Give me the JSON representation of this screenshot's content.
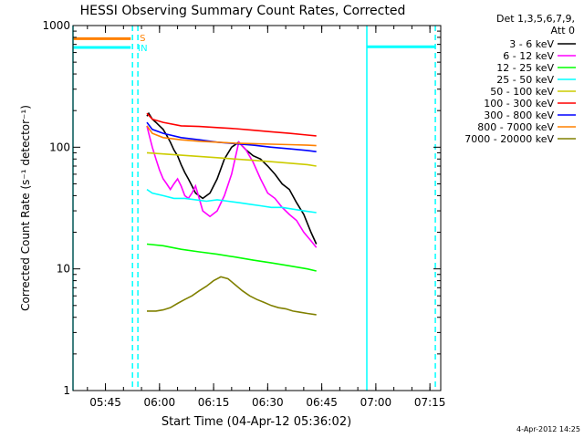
{
  "chart_data": {
    "type": "line",
    "title": "HESSI Observing Summary Count Rates, Corrected",
    "xlabel": "Start Time (04-Apr-12 05:36:02)",
    "ylabel": "Corrected Count Rate (s⁻¹ detector⁻¹)",
    "y_scale": "log",
    "ylim": [
      1,
      1000
    ],
    "xlim_min": [
      0,
      102
    ],
    "x_ticks": [
      {
        "min": 9,
        "label": "05:45"
      },
      {
        "min": 24,
        "label": "06:00"
      },
      {
        "min": 39,
        "label": "06:15"
      },
      {
        "min": 54,
        "label": "06:30"
      },
      {
        "min": 69,
        "label": "06:45"
      },
      {
        "min": 84,
        "label": "07:00"
      },
      {
        "min": 99,
        "label": "07:15"
      }
    ],
    "y_ticks": [
      {
        "value": 1,
        "label": "1"
      },
      {
        "value": 10,
        "label": "10"
      },
      {
        "value": 100,
        "label": "100"
      },
      {
        "value": 1000,
        "label": "1000"
      }
    ],
    "legend_header": [
      "Det 1,3,5,6,7,9,",
      "Att 0"
    ],
    "legend_position": "right",
    "date_stamp": "4-Apr-2012 14:25",
    "series": [
      {
        "name": "3 - 6 keV",
        "color": "#000000",
        "x": [
          20.5,
          21,
          22,
          23,
          24,
          25,
          26,
          27,
          28,
          29,
          30,
          31,
          32,
          33,
          34,
          36,
          38,
          40,
          42,
          44,
          46,
          48,
          50,
          52,
          54,
          56,
          58,
          60,
          62,
          64,
          66,
          67.5
        ],
        "values": [
          180,
          190,
          170,
          160,
          150,
          140,
          125,
          110,
          95,
          85,
          72,
          62,
          55,
          48,
          42,
          38,
          42,
          55,
          80,
          100,
          110,
          95,
          85,
          80,
          70,
          60,
          50,
          45,
          35,
          28,
          20,
          16
        ]
      },
      {
        "name": "6 - 12 keV",
        "color": "#ff00ff",
        "x": [
          20.5,
          21,
          22,
          23,
          24,
          25,
          26,
          27,
          28,
          29,
          30,
          31,
          32,
          33,
          34,
          35,
          36,
          38,
          40,
          42,
          44,
          46,
          48,
          50,
          52,
          54,
          56,
          58,
          60,
          62,
          64,
          66,
          67.5
        ],
        "values": [
          150,
          130,
          100,
          80,
          65,
          55,
          50,
          45,
          50,
          55,
          48,
          40,
          38,
          42,
          48,
          38,
          30,
          27,
          30,
          40,
          60,
          110,
          95,
          75,
          55,
          42,
          38,
          32,
          28,
          25,
          20,
          17,
          15
        ]
      },
      {
        "name": "12 - 25 keV",
        "color": "#00ff00",
        "x": [
          20.5,
          25,
          30,
          35,
          40,
          45,
          50,
          55,
          60,
          65,
          67.5
        ],
        "values": [
          16,
          15.5,
          14.5,
          13.8,
          13.2,
          12.5,
          11.8,
          11.2,
          10.6,
          10.0,
          9.6
        ]
      },
      {
        "name": "25 - 50 keV",
        "color": "#00ffff",
        "x": [
          20.5,
          22,
          25,
          28,
          31,
          34,
          37,
          40,
          43,
          46,
          49,
          52,
          55,
          58,
          61,
          64,
          67.5
        ],
        "values": [
          45,
          42,
          40,
          38,
          38,
          37,
          36,
          37,
          36,
          35,
          34,
          33,
          32,
          32,
          31,
          30,
          29
        ]
      },
      {
        "name": "50 - 100 keV",
        "color": "#cccc00",
        "x": [
          20.5,
          25,
          30,
          35,
          40,
          45,
          50,
          55,
          60,
          65,
          67.5
        ],
        "values": [
          90,
          88,
          86,
          84,
          82,
          80,
          78,
          76,
          74,
          72,
          70
        ]
      },
      {
        "name": "100 - 300 keV",
        "color": "#ff0000",
        "x": [
          20.5,
          22,
          25,
          30,
          35,
          40,
          45,
          50,
          55,
          60,
          65,
          67.5
        ],
        "values": [
          190,
          170,
          160,
          150,
          148,
          145,
          142,
          138,
          134,
          130,
          126,
          124
        ]
      },
      {
        "name": "300 - 800 keV",
        "color": "#0000ff",
        "x": [
          20.5,
          22,
          25,
          30,
          35,
          40,
          45,
          50,
          55,
          60,
          65,
          67.5
        ],
        "values": [
          160,
          140,
          130,
          120,
          115,
          110,
          107,
          104,
          100,
          97,
          94,
          92
        ]
      },
      {
        "name": "800 - 7000 keV",
        "color": "#ff8000",
        "x": [
          20.5,
          22,
          25,
          30,
          35,
          40,
          45,
          50,
          55,
          60,
          65,
          67.5
        ],
        "values": [
          150,
          130,
          120,
          115,
          112,
          110,
          108,
          107,
          106,
          105,
          104,
          103
        ]
      },
      {
        "name": "7000 - 20000 keV",
        "color": "#808000",
        "x": [
          20.5,
          21,
          23,
          25,
          27,
          29,
          31,
          33,
          35,
          37,
          39,
          41,
          43,
          45,
          47,
          49,
          51,
          53,
          55,
          57,
          59,
          61,
          63,
          65,
          67.5
        ],
        "values": [
          4.5,
          4.5,
          4.5,
          4.6,
          4.8,
          5.2,
          5.6,
          6.0,
          6.6,
          7.2,
          8.0,
          8.6,
          8.3,
          7.4,
          6.6,
          6.0,
          5.6,
          5.3,
          5.0,
          4.8,
          4.7,
          4.5,
          4.4,
          4.3,
          4.2
        ]
      }
    ],
    "markers": [
      {
        "type": "bar",
        "x_start": 0,
        "x_end": 16,
        "value": 780,
        "color": "#ff8000"
      },
      {
        "type": "bar",
        "x_start": 0,
        "x_end": 16,
        "value": 660,
        "color": "#00ffff"
      },
      {
        "type": "bar",
        "x_start": 81.5,
        "x_end": 100.5,
        "value": 670,
        "color": "#00ffff"
      },
      {
        "type": "vline",
        "min": 0,
        "color": "#00ffff",
        "style": "solid"
      },
      {
        "type": "vline",
        "min": 16.5,
        "color": "#00ffff",
        "style": "dashed"
      },
      {
        "type": "vline",
        "min": 18,
        "color": "#00ffff",
        "style": "dashed"
      },
      {
        "type": "vline",
        "min": 81.5,
        "color": "#00ffff",
        "style": "solid"
      },
      {
        "type": "vline",
        "min": 100.5,
        "color": "#00ffff",
        "style": "dashed"
      }
    ],
    "flags": [
      {
        "text": "S",
        "min": 18,
        "value": 800,
        "color": "#ff8000"
      },
      {
        "text": "IN",
        "min": 17.5,
        "value": 660,
        "color": "#00ffff"
      }
    ]
  }
}
